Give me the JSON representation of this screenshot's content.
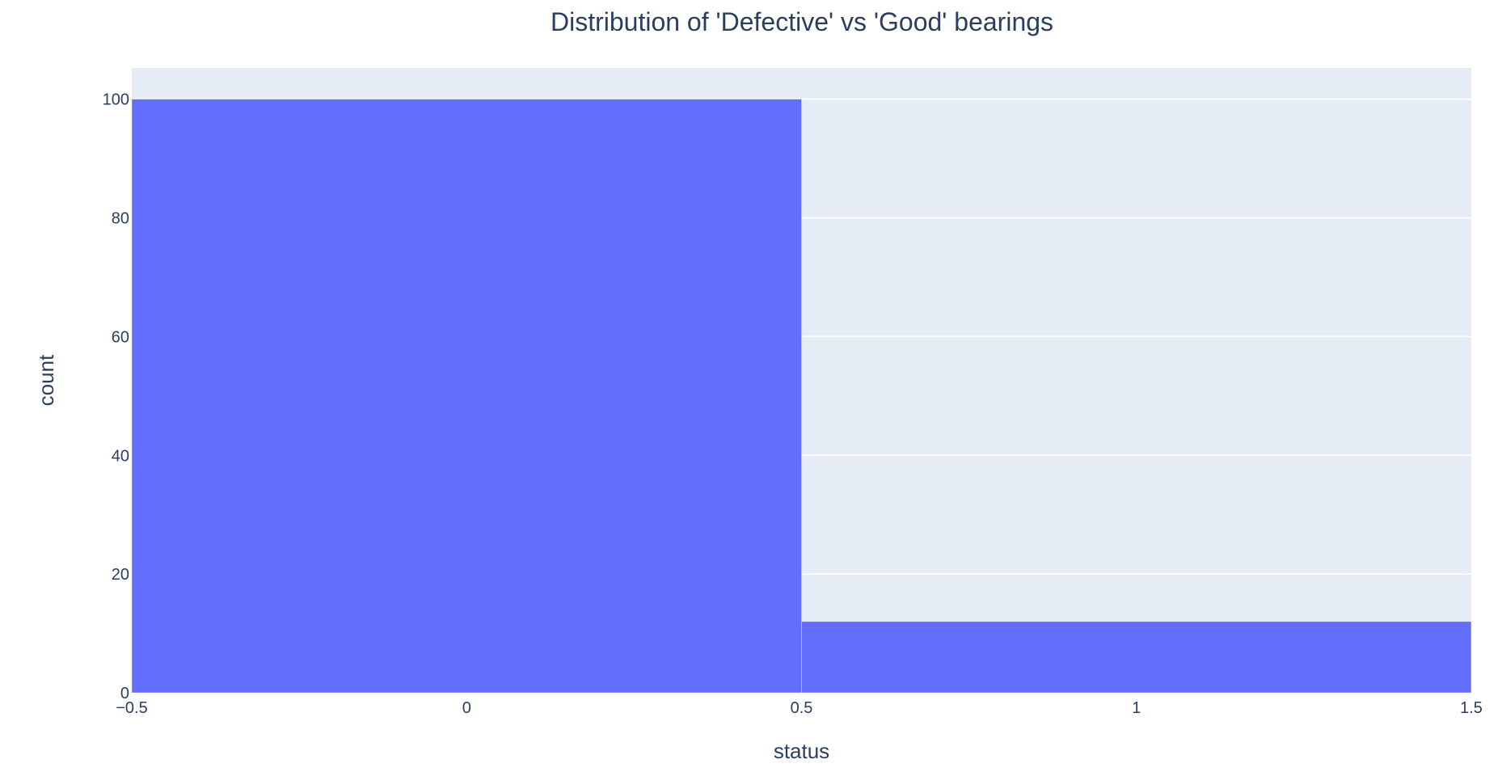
{
  "chart_data": {
    "type": "bar",
    "title": "Distribution of 'Defective' vs 'Good' bearings",
    "xlabel": "status",
    "ylabel": "count",
    "bins": [
      {
        "x0": -0.5,
        "x1": 0.5,
        "value": 100
      },
      {
        "x0": 0.5,
        "x1": 1.5,
        "value": 12
      }
    ],
    "xlim": [
      -0.5,
      1.5
    ],
    "ylim": [
      0,
      105.26
    ],
    "x_ticks": [
      -0.5,
      0,
      0.5,
      1,
      1.5
    ],
    "x_tick_labels": [
      "−0.5",
      "0",
      "0.5",
      "1",
      "1.5"
    ],
    "y_ticks": [
      0,
      20,
      40,
      60,
      80,
      100
    ],
    "y_tick_labels": [
      "0",
      "20",
      "40",
      "60",
      "80",
      "100"
    ],
    "grid": true,
    "bar_color": "#636efa",
    "plot_bg_color": "#e5ecf6",
    "text_color": "#2a3f5f"
  }
}
